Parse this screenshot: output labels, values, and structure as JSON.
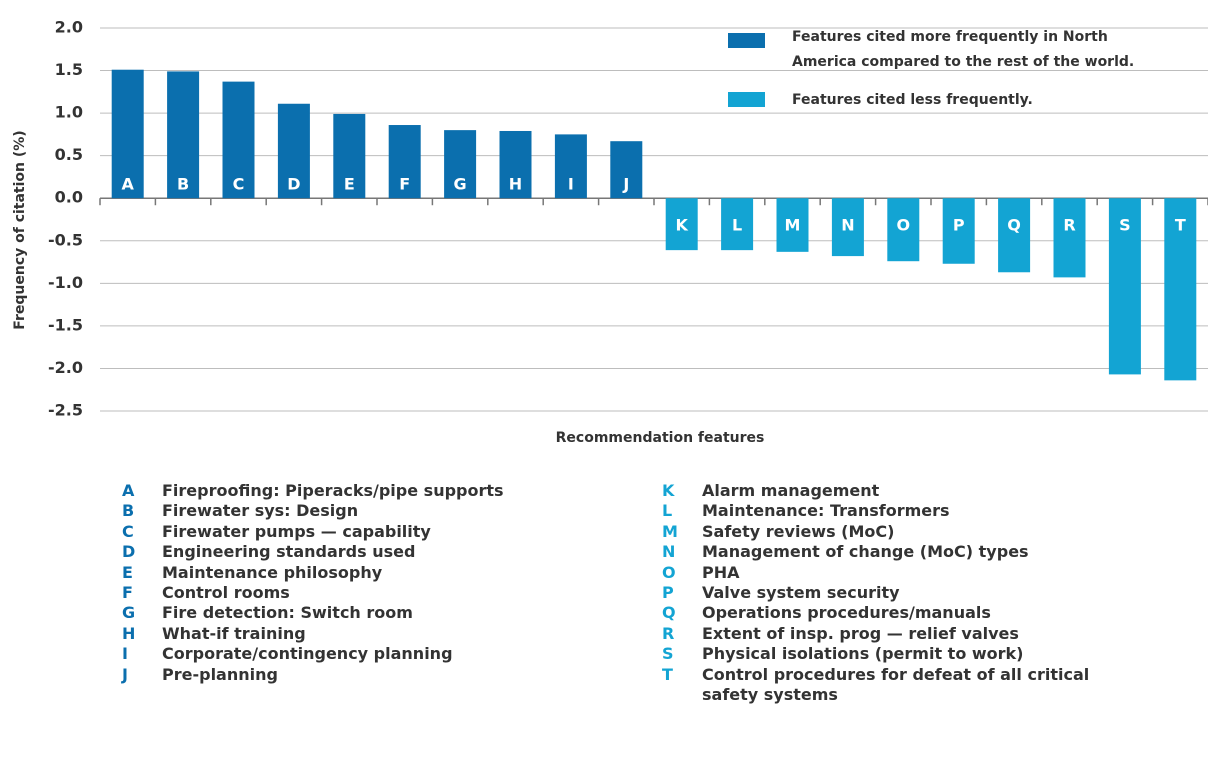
{
  "chart_data": {
    "type": "bar",
    "y_label": "Frequency of citation  (%)",
    "x_label": "Recommendation features",
    "categories": [
      "A",
      "B",
      "C",
      "D",
      "E",
      "F",
      "G",
      "H",
      "I",
      "J",
      "K",
      "L",
      "M",
      "N",
      "O",
      "P",
      "Q",
      "R",
      "S",
      "T"
    ],
    "series": [
      {
        "name": "Features cited more frequently in North America compared to the rest of the world.",
        "color": "#0b6fae",
        "values": [
          1.51,
          1.49,
          1.37,
          1.11,
          0.99,
          0.86,
          0.8,
          0.79,
          0.75,
          0.67,
          null,
          null,
          null,
          null,
          null,
          null,
          null,
          null,
          null,
          null
        ]
      },
      {
        "name": "Features cited less frequently.",
        "color": "#13a4d3",
        "values": [
          null,
          null,
          null,
          null,
          null,
          null,
          null,
          null,
          null,
          null,
          -0.61,
          -0.61,
          -0.63,
          -0.68,
          -0.74,
          -0.77,
          -0.87,
          -0.93,
          -2.07,
          -2.14
        ]
      }
    ],
    "ylim": [
      -2.5,
      2.0
    ],
    "yticks": [
      {
        "value": 2.0,
        "label": "2.0"
      },
      1.5,
      {
        "value": 1.0,
        "label": "1.0"
      },
      0.5,
      {
        "value": 0,
        "label": "0.0"
      },
      -0.5,
      {
        "value": -1.0,
        "label": "-1.0"
      },
      -1.5,
      {
        "value": -2.0,
        "label": "-2.0"
      },
      -2.5
    ],
    "grid": true,
    "key_descriptions": [
      "Fireproofing: Piperacks/pipe supports",
      "Firewater sys: Design",
      "Firewater pumps — capability",
      "Engineering standards used",
      "Maintenance philosophy",
      "Control rooms",
      "Fire detection: Switch room",
      "What-if training",
      "Corporate/contingency planning",
      "Pre-planning",
      "Alarm management",
      "Maintenance: Transformers",
      "Safety reviews (MoC)",
      "Management of change (MoC) types",
      "PHA",
      "Valve system security",
      "Operations procedures/manuals",
      "Extent of insp. prog — relief valves",
      "Physical isolations (permit to work)",
      "Control procedures for defeat of all critical safety systems"
    ]
  }
}
